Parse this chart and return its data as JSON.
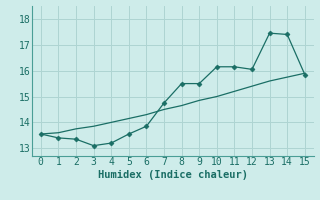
{
  "xlabel": "Humidex (Indice chaleur)",
  "bg_color": "#ceecea",
  "grid_color": "#aed4d2",
  "line_color": "#1a6e65",
  "xlim": [
    -0.5,
    15.5
  ],
  "ylim": [
    12.7,
    18.5
  ],
  "xticks": [
    0,
    1,
    2,
    3,
    4,
    5,
    6,
    7,
    8,
    9,
    10,
    11,
    12,
    13,
    14,
    15
  ],
  "yticks": [
    13,
    14,
    15,
    16,
    17,
    18
  ],
  "x_data": [
    0,
    1,
    2,
    3,
    4,
    5,
    6,
    7,
    8,
    9,
    10,
    11,
    12,
    13,
    14,
    15
  ],
  "y_zigzag": [
    13.55,
    13.4,
    13.35,
    13.1,
    13.2,
    13.55,
    13.85,
    14.75,
    15.5,
    15.5,
    16.15,
    16.15,
    16.05,
    17.45,
    17.4,
    15.85
  ],
  "y_trend": [
    13.55,
    13.6,
    13.75,
    13.85,
    14.0,
    14.15,
    14.3,
    14.5,
    14.65,
    14.85,
    15.0,
    15.2,
    15.4,
    15.6,
    15.75,
    15.9
  ],
  "marker_style": "D",
  "marker_size": 2.5,
  "xlabel_fontsize": 7.5,
  "tick_fontsize": 7,
  "spine_color": "#4a9e96"
}
